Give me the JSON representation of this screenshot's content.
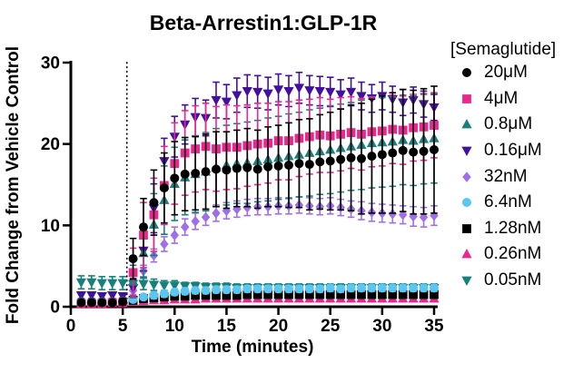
{
  "chart_data": {
    "type": "scatter",
    "title": "Beta-Arrestin1:GLP-1R",
    "xlabel": "Time (minutes)",
    "ylabel": "Fold Change from Vehicle Control",
    "legend_title": "[Semaglutide]",
    "legend_position": "right",
    "grid": false,
    "error_bars": "sd",
    "xlim": [
      0,
      35
    ],
    "ylim": [
      0,
      30
    ],
    "xticks": [
      0,
      5,
      10,
      15,
      20,
      25,
      30,
      35
    ],
    "yticks": [
      0,
      10,
      20,
      30
    ],
    "stimulus_line_x": 5.4,
    "x": [
      1,
      2,
      3,
      4,
      5,
      6,
      7,
      8,
      9,
      10,
      11,
      12,
      13,
      14,
      15,
      16,
      17,
      18,
      19,
      20,
      21,
      22,
      23,
      24,
      25,
      26,
      27,
      28,
      29,
      30,
      31,
      32,
      33,
      34,
      35
    ],
    "series": [
      {
        "name": "20μM",
        "marker": "circle",
        "color": "#000000",
        "values": [
          0.5,
          0.5,
          0.5,
          0.5,
          0.6,
          5.9,
          9.8,
          12.8,
          14.6,
          15.8,
          16.3,
          16.4,
          16.6,
          16.9,
          16.8,
          17.0,
          17.1,
          16.9,
          17.2,
          17.3,
          17.4,
          17.6,
          17.5,
          17.8,
          17.9,
          18.1,
          18.3,
          18.2,
          18.5,
          18.7,
          18.9,
          19.2,
          19.0,
          19.1,
          19.3
        ],
        "errors": [
          0.3,
          0.3,
          0.3,
          0.3,
          0.4,
          2.5,
          3.5,
          4.0,
          4.3,
          4.5,
          4.5,
          4.5,
          4.6,
          4.6,
          4.7,
          4.7,
          4.8,
          4.8,
          4.9,
          5.0,
          5.2,
          5.4,
          5.6,
          5.8,
          6.0,
          6.2,
          6.5,
          6.8,
          7.0,
          7.2,
          7.4,
          7.5,
          7.6,
          7.7,
          7.8
        ]
      },
      {
        "name": "4μM",
        "marker": "square",
        "color": "#EC268F",
        "values": [
          0.4,
          0.4,
          0.4,
          0.5,
          0.5,
          4.2,
          8.8,
          11.3,
          14.9,
          17.6,
          18.9,
          19.4,
          19.7,
          19.4,
          19.6,
          19.6,
          19.8,
          20.0,
          20.1,
          20.4,
          20.4,
          20.7,
          20.9,
          21.1,
          21.0,
          21.2,
          21.4,
          21.2,
          21.5,
          21.6,
          21.8,
          21.7,
          22.0,
          22.1,
          22.3
        ],
        "errors": [
          0.3,
          0.3,
          0.3,
          0.3,
          0.4,
          3.0,
          4.0,
          4.5,
          4.8,
          5.0,
          5.2,
          5.3,
          5.3,
          5.2,
          5.2,
          5.1,
          5.0,
          5.0,
          4.9,
          4.8,
          4.8,
          4.7,
          4.6,
          4.6,
          4.5,
          4.5,
          4.4,
          4.4,
          4.3,
          4.3,
          4.2,
          4.2,
          4.1,
          4.1,
          4.0
        ]
      },
      {
        "name": "0.8μM",
        "marker": "triangle-up",
        "color": "#16817A",
        "values": [
          0.6,
          0.6,
          0.6,
          0.6,
          0.7,
          3.1,
          6.6,
          10.1,
          13.1,
          15.1,
          15.9,
          16.3,
          16.6,
          17.1,
          17.4,
          17.6,
          17.7,
          17.9,
          18.1,
          18.3,
          18.5,
          18.7,
          18.9,
          19.1,
          19.3,
          19.5,
          19.7,
          19.9,
          20.1,
          20.2,
          20.3,
          20.5,
          20.4,
          20.6,
          20.7
        ],
        "errors": [
          0.4,
          0.4,
          0.4,
          0.4,
          0.4,
          2.0,
          3.0,
          3.8,
          4.2,
          4.5,
          4.6,
          4.7,
          4.8,
          4.8,
          4.9,
          4.9,
          5.0,
          5.0,
          5.1,
          5.1,
          5.2,
          5.2,
          5.3,
          5.3,
          5.4,
          5.4,
          5.4,
          5.5,
          5.5,
          5.5,
          5.5,
          5.5,
          5.5,
          5.5,
          5.5
        ]
      },
      {
        "name": "0.16μM",
        "marker": "triangle-down",
        "color": "#41109E",
        "values": [
          1.4,
          1.4,
          1.3,
          1.4,
          1.3,
          2.3,
          6.9,
          12.1,
          17.9,
          20.9,
          22.4,
          23.3,
          23.2,
          25.4,
          25.2,
          26.0,
          26.5,
          26.4,
          26.2,
          26.7,
          26.5,
          26.9,
          26.6,
          26.5,
          26.4,
          26.1,
          26.4,
          25.9,
          25.6,
          25.9,
          25.5,
          25.1,
          25.4,
          24.9,
          24.5
        ],
        "errors": [
          0.4,
          0.4,
          0.4,
          0.4,
          0.4,
          1.0,
          2.5,
          3.0,
          2.8,
          2.5,
          2.4,
          2.3,
          2.2,
          2.2,
          2.1,
          2.1,
          2.0,
          2.0,
          2.0,
          1.9,
          1.9,
          1.9,
          1.8,
          1.8,
          1.8,
          1.8,
          1.7,
          1.7,
          1.7,
          1.7,
          1.6,
          1.6,
          1.6,
          1.6,
          1.6
        ]
      },
      {
        "name": "32nM",
        "marker": "diamond",
        "color": "#A06EE8",
        "values": [
          0.8,
          0.8,
          0.8,
          0.8,
          0.9,
          2.0,
          4.4,
          6.3,
          7.7,
          8.8,
          9.8,
          10.5,
          11.0,
          11.5,
          11.8,
          12.0,
          12.2,
          12.3,
          12.3,
          12.4,
          12.4,
          12.5,
          12.4,
          12.3,
          12.4,
          12.2,
          12.0,
          11.8,
          11.6,
          11.5,
          11.4,
          11.3,
          11.1,
          11.0,
          11.2
        ],
        "errors": [
          0.2,
          0.2,
          0.2,
          0.2,
          0.2,
          0.5,
          0.7,
          0.8,
          0.9,
          1.0,
          1.0,
          1.0,
          1.0,
          1.0,
          1.0,
          1.0,
          1.0,
          1.0,
          1.0,
          1.0,
          1.0,
          1.0,
          1.0,
          1.0,
          1.0,
          1.0,
          1.0,
          1.1,
          1.1,
          1.1,
          1.1,
          1.1,
          1.2,
          1.2,
          1.2
        ]
      },
      {
        "name": "6.4nM",
        "marker": "circle",
        "color": "#5BC6F2",
        "values": [
          0.5,
          0.5,
          0.5,
          0.5,
          0.5,
          0.9,
          1.2,
          1.4,
          1.6,
          1.8,
          1.9,
          2.0,
          2.0,
          2.1,
          2.1,
          2.1,
          2.2,
          2.2,
          2.2,
          2.2,
          2.2,
          2.2,
          2.2,
          2.2,
          2.3,
          2.2,
          2.3,
          2.3,
          2.3,
          2.3,
          2.3,
          2.3,
          2.3,
          2.3,
          2.3
        ],
        "errors": [
          0.2,
          0.2,
          0.2,
          0.2,
          0.2,
          0.3,
          0.3,
          0.4,
          0.4,
          0.4,
          0.4,
          0.4,
          0.4,
          0.4,
          0.4,
          0.4,
          0.4,
          0.4,
          0.4,
          0.4,
          0.4,
          0.4,
          0.4,
          0.4,
          0.4,
          0.4,
          0.4,
          0.4,
          0.4,
          0.4,
          0.4,
          0.4,
          0.4,
          0.4,
          0.4
        ]
      },
      {
        "name": "1.28nM",
        "marker": "square",
        "color": "#000000",
        "values": [
          0.4,
          0.4,
          0.4,
          0.4,
          0.4,
          0.8,
          1.0,
          1.1,
          1.2,
          1.3,
          1.3,
          1.4,
          1.4,
          1.4,
          1.4,
          1.4,
          1.5,
          1.5,
          1.5,
          1.5,
          1.5,
          1.5,
          1.5,
          1.5,
          1.5,
          1.5,
          1.5,
          1.5,
          1.5,
          1.5,
          1.5,
          1.5,
          1.5,
          1.5,
          1.5
        ],
        "errors": [
          0.15,
          0.15,
          0.15,
          0.15,
          0.15,
          0.2,
          0.2,
          0.2,
          0.2,
          0.2,
          0.2,
          0.2,
          0.2,
          0.2,
          0.2,
          0.2,
          0.2,
          0.2,
          0.2,
          0.2,
          0.2,
          0.2,
          0.2,
          0.2,
          0.2,
          0.2,
          0.2,
          0.2,
          0.2,
          0.2,
          0.2,
          0.2,
          0.2,
          0.2,
          0.2
        ]
      },
      {
        "name": "0.26nM",
        "marker": "triangle-up",
        "color": "#EC268F",
        "values": [
          0.3,
          0.3,
          0.3,
          0.3,
          0.3,
          0.6,
          0.7,
          0.8,
          0.8,
          0.9,
          0.9,
          0.9,
          1.0,
          1.0,
          1.0,
          1.0,
          1.0,
          1.0,
          1.0,
          1.0,
          1.0,
          1.0,
          1.0,
          1.0,
          1.0,
          1.0,
          1.0,
          1.0,
          1.0,
          1.0,
          1.0,
          1.0,
          1.0,
          1.0,
          1.0
        ],
        "errors": [
          0.15,
          0.15,
          0.15,
          0.15,
          0.15,
          0.2,
          0.2,
          0.2,
          0.2,
          0.2,
          0.2,
          0.2,
          0.2,
          0.2,
          0.2,
          0.2,
          0.2,
          0.2,
          0.2,
          0.2,
          0.2,
          0.2,
          0.2,
          0.2,
          0.2,
          0.2,
          0.2,
          0.2,
          0.2,
          0.2,
          0.2,
          0.2,
          0.2,
          0.2,
          0.2
        ]
      },
      {
        "name": "0.05nM",
        "marker": "triangle-down",
        "color": "#16817A",
        "values": [
          3.0,
          3.0,
          2.9,
          2.9,
          2.9,
          2.8,
          2.8,
          2.7,
          2.6,
          2.6,
          2.5,
          2.5,
          2.4,
          2.4,
          2.4,
          2.3,
          2.3,
          2.3,
          2.3,
          2.3,
          2.3,
          2.3,
          2.3,
          2.3,
          2.3,
          2.3,
          2.3,
          2.3,
          2.3,
          2.3,
          2.3,
          2.3,
          2.3,
          2.3,
          2.3
        ],
        "errors": [
          0.8,
          0.8,
          0.8,
          0.8,
          0.8,
          0.7,
          0.7,
          0.7,
          0.6,
          0.6,
          0.5,
          0.5,
          0.5,
          0.5,
          0.5,
          0.5,
          0.5,
          0.5,
          0.5,
          0.5,
          0.5,
          0.5,
          0.5,
          0.5,
          0.5,
          0.5,
          0.5,
          0.5,
          0.5,
          0.5,
          0.5,
          0.5,
          0.5,
          0.5,
          0.5
        ]
      }
    ]
  },
  "colors": {
    "axis": "#000000",
    "background": "#ffffff",
    "stimulus_line": "#000000"
  }
}
